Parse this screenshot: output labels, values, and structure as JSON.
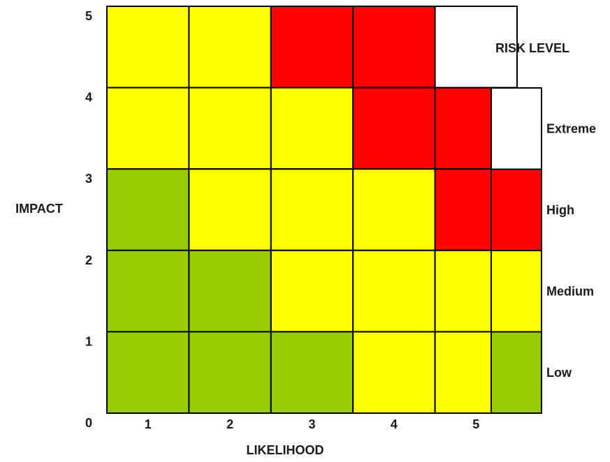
{
  "chart_data": {
    "type": "heatmap",
    "xlabel": "LIKELIHOOD",
    "ylabel": "IMPACT",
    "x_ticks": [
      "1",
      "2",
      "3",
      "4",
      "5"
    ],
    "y_ticks": [
      "1",
      "2",
      "3",
      "4",
      "5"
    ],
    "origin_label": "0",
    "grid": true,
    "rows": [
      {
        "impact": 5,
        "levels": [
          "Medium",
          "Medium",
          "High",
          "High",
          "Extreme"
        ]
      },
      {
        "impact": 4,
        "levels": [
          "Medium",
          "Medium",
          "Medium",
          "High",
          "High"
        ]
      },
      {
        "impact": 3,
        "levels": [
          "Low",
          "Medium",
          "Medium",
          "Medium",
          "High"
        ]
      },
      {
        "impact": 2,
        "levels": [
          "Low",
          "Low",
          "Medium",
          "Medium",
          "Medium"
        ]
      },
      {
        "impact": 1,
        "levels": [
          "Low",
          "Low",
          "Low",
          "Medium",
          "Medium"
        ]
      }
    ],
    "legend": {
      "title": "RISK LEVEL",
      "placement": "right",
      "items": [
        {
          "label": "Extreme",
          "color": "#ffffff"
        },
        {
          "label": "High",
          "color": "#ff0000"
        },
        {
          "label": "Medium",
          "color": "#ffff00"
        },
        {
          "label": "Low",
          "color": "#99cc00"
        }
      ]
    }
  }
}
